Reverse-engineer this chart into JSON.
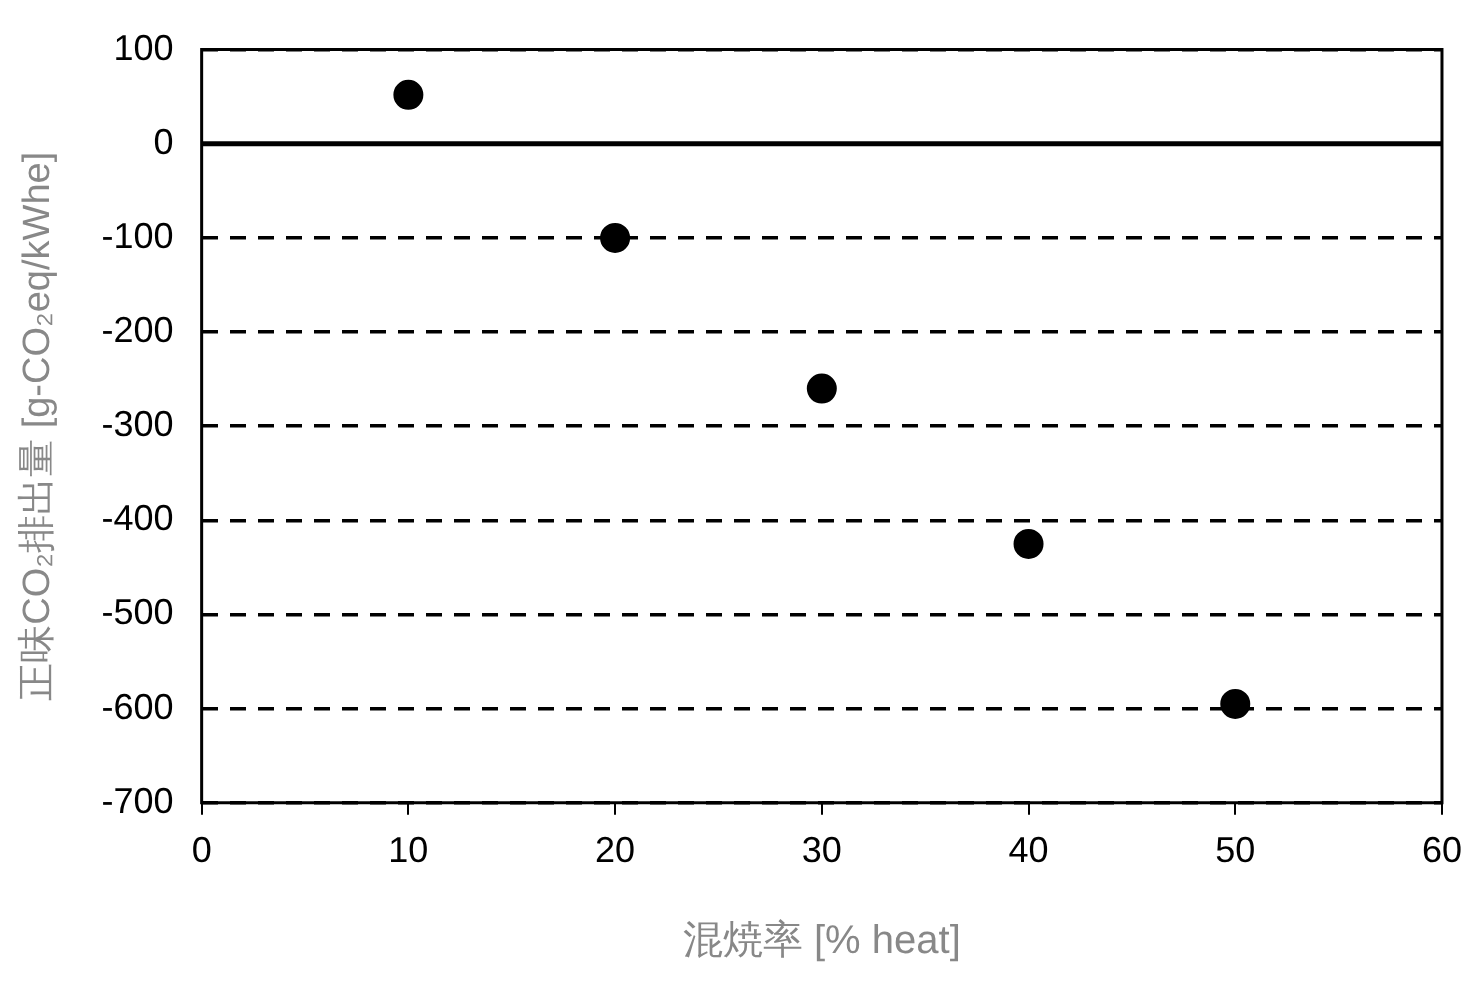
{
  "chart_data": {
    "type": "scatter",
    "xlabel": "混焼率 [% heat]",
    "ylabel": "正味CO₂排出量 [g-CO₂eq/kWhe]",
    "x": [
      10,
      20,
      30,
      40,
      50
    ],
    "series": [
      {
        "color": "#000000",
        "values": [
          52,
          -100,
          -260,
          -425,
          -595
        ]
      }
    ],
    "xlim": [
      0,
      60
    ],
    "xticks": [
      0,
      10,
      20,
      30,
      40,
      50,
      60
    ],
    "ylim": [
      -700,
      100
    ],
    "yticks": [
      -700,
      -600,
      -500,
      -400,
      -300,
      -200,
      -100,
      0,
      100
    ],
    "grid": "y",
    "marker": "circle",
    "legend": false,
    "ref_lines": [
      {
        "axis": "y",
        "value": 0,
        "color": "#000000",
        "line_style": "solid"
      }
    ]
  }
}
